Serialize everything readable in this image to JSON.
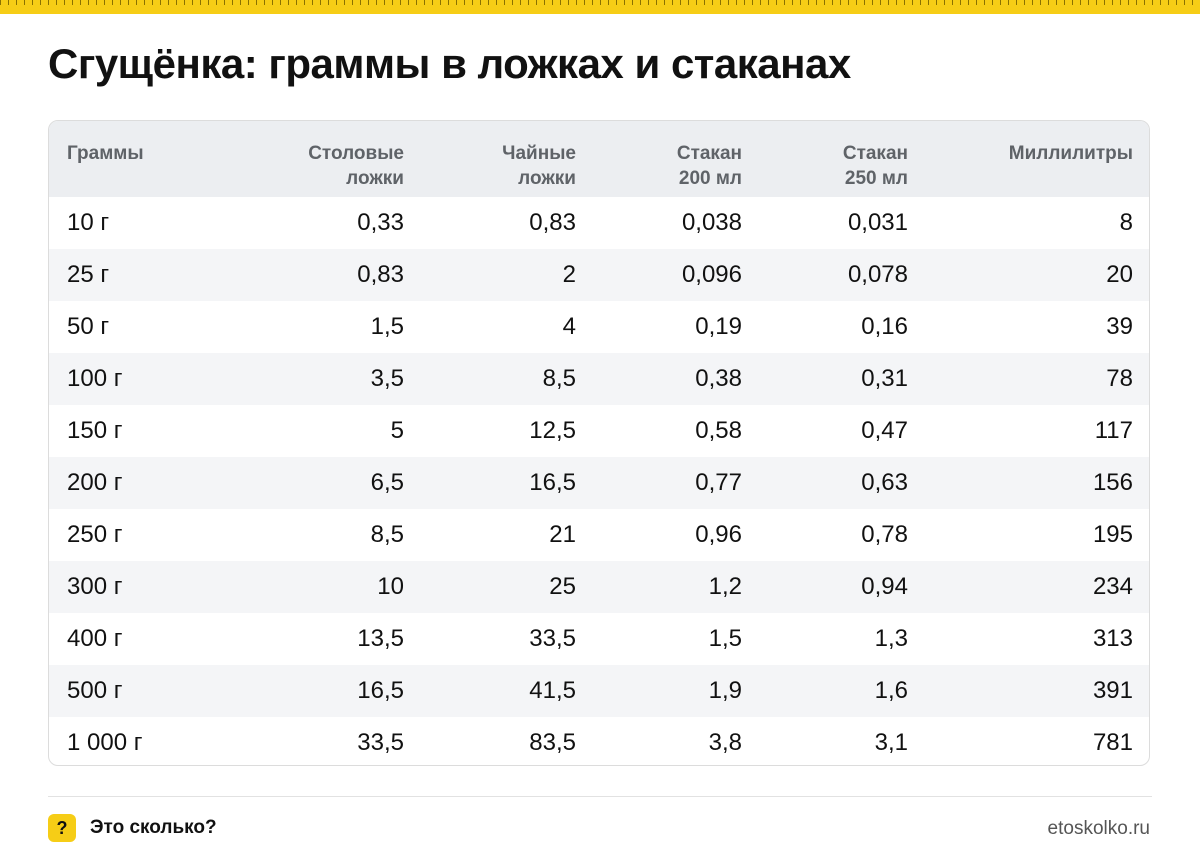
{
  "title": "Сгущёнка: граммы в ложках и стаканах",
  "table": {
    "headers": [
      [
        "Граммы",
        ""
      ],
      [
        "Столовые",
        "ложки"
      ],
      [
        "Чайные",
        "ложки"
      ],
      [
        "Стакан",
        "200 мл"
      ],
      [
        "Стакан",
        "250 мл"
      ],
      [
        "Миллилитры",
        ""
      ]
    ],
    "rows": [
      [
        "10 г",
        "0,33",
        "0,83",
        "0,038",
        "0,031",
        "8"
      ],
      [
        "25 г",
        "0,83",
        "2",
        "0,096",
        "0,078",
        "20"
      ],
      [
        "50 г",
        "1,5",
        "4",
        "0,19",
        "0,16",
        "39"
      ],
      [
        "100 г",
        "3,5",
        "8,5",
        "0,38",
        "0,31",
        "78"
      ],
      [
        "150 г",
        "5",
        "12,5",
        "0,58",
        "0,47",
        "117"
      ],
      [
        "200 г",
        "6,5",
        "16,5",
        "0,77",
        "0,63",
        "156"
      ],
      [
        "250 г",
        "8,5",
        "21",
        "0,96",
        "0,78",
        "195"
      ],
      [
        "300 г",
        "10",
        "25",
        "1,2",
        "0,94",
        "234"
      ],
      [
        "400 г",
        "13,5",
        "33,5",
        "1,5",
        "1,3",
        "313"
      ],
      [
        "500 г",
        "16,5",
        "41,5",
        "1,9",
        "1,6",
        "391"
      ],
      [
        "1 000 г",
        "33,5",
        "83,5",
        "3,8",
        "3,1",
        "781"
      ]
    ]
  },
  "footer": {
    "badge": "?",
    "brand": "Это сколько?",
    "site": "etoskolko.ru"
  },
  "colors": {
    "accent": "#f6cd16",
    "header_bg": "#eceef1",
    "stripe_bg": "#f4f5f7"
  }
}
